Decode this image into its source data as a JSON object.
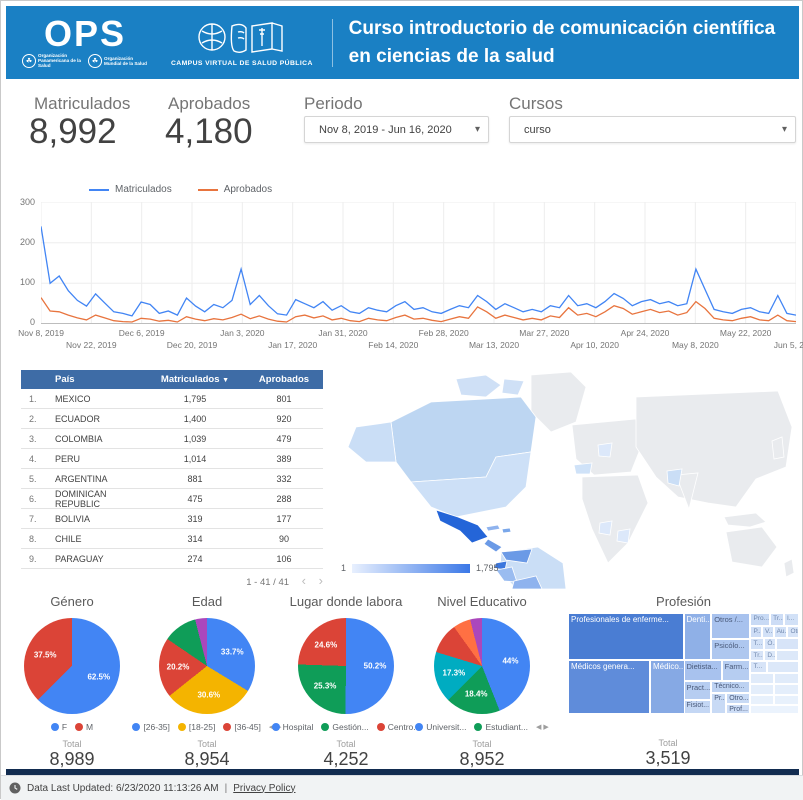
{
  "header": {
    "ops_text": "OPS",
    "org1": "Organización Panamericana de la Salud",
    "org2": "Organización Mundial de la Salud",
    "campus_label": "CAMPUS VIRTUAL DE SALUD PÚBLICA",
    "title": "Curso introductorio de comunicación científica en ciencias de la salud",
    "bg_color": "#1a80c4"
  },
  "scorecards": [
    {
      "label": "Matriculados",
      "value": "8,992"
    },
    {
      "label": "Aprobados",
      "value": "4,180"
    }
  ],
  "filters": {
    "periodo_label": "Periodo",
    "periodo_value": "Nov 8, 2019 - Jun 16, 2020",
    "cursos_label": "Cursos",
    "cursos_value": "curso"
  },
  "chart_data": {
    "timeseries": {
      "type": "line",
      "ylim": [
        0,
        300
      ],
      "yticks": [
        300,
        200,
        100,
        0
      ],
      "xticks_row1": [
        "Nov 8, 2019",
        "Dec 6, 2019",
        "Jan 3, 2020",
        "Jan 31, 2020",
        "Feb 28, 2020",
        "Mar 27, 2020",
        "Apr 24, 2020",
        "May 22, 2020"
      ],
      "xticks_row2": [
        "Nov 22, 2019",
        "Dec 20, 2019",
        "Jan 17, 2020",
        "Feb 14, 2020",
        "Mar 13, 2020",
        "Apr 10, 2020",
        "May 8, 2020",
        "Jun 5, 2020"
      ],
      "series": [
        {
          "name": "Matriculados",
          "color": "#4285f4",
          "values": [
            240,
            100,
            118,
            82,
            58,
            44,
            74,
            52,
            30,
            26,
            20,
            54,
            48,
            26,
            32,
            22,
            64,
            44,
            30,
            48,
            40,
            58,
            135,
            48,
            70,
            45,
            25,
            22,
            60,
            50,
            40,
            55,
            34,
            45,
            30,
            26,
            40,
            34,
            30,
            45,
            55,
            36,
            40,
            30,
            26,
            36,
            45,
            40,
            70,
            55,
            36,
            50,
            40,
            30,
            36,
            30,
            45,
            40,
            70,
            45,
            50,
            40,
            55,
            75,
            63,
            45,
            55,
            60,
            50,
            55,
            45,
            50,
            135,
            85,
            36,
            30,
            26,
            36,
            40,
            30,
            26,
            70,
            26,
            22
          ]
        },
        {
          "name": "Aprobados",
          "color": "#e8743e",
          "values": [
            65,
            32,
            30,
            22,
            15,
            10,
            22,
            15,
            8,
            6,
            5,
            14,
            12,
            7,
            9,
            5,
            18,
            12,
            8,
            13,
            10,
            16,
            24,
            13,
            20,
            12,
            7,
            5,
            18,
            22,
            15,
            20,
            10,
            14,
            8,
            6,
            14,
            10,
            8,
            16,
            22,
            12,
            14,
            9,
            6,
            12,
            18,
            14,
            42,
            30,
            14,
            22,
            16,
            10,
            14,
            10,
            20,
            16,
            40,
            22,
            26,
            18,
            30,
            45,
            38,
            24,
            30,
            36,
            28,
            32,
            22,
            28,
            55,
            38,
            14,
            10,
            8,
            14,
            18,
            10,
            8,
            22,
            8,
            6
          ]
        }
      ]
    },
    "country_table": {
      "type": "table",
      "columns": [
        "País",
        "Matriculados",
        "Aprobados"
      ],
      "sorted_column": "Matriculados",
      "sort_icon": "▼",
      "rows": [
        [
          "1.",
          "MEXICO",
          "1,795",
          "801"
        ],
        [
          "2.",
          "ECUADOR",
          "1,400",
          "920"
        ],
        [
          "3.",
          "COLOMBIA",
          "1,039",
          "479"
        ],
        [
          "4.",
          "PERU",
          "1,014",
          "389"
        ],
        [
          "5.",
          "ARGENTINA",
          "881",
          "332"
        ],
        [
          "6.",
          "DOMINICAN REPUBLIC",
          "475",
          "288"
        ],
        [
          "7.",
          "BOLIVIA",
          "319",
          "177"
        ],
        [
          "8.",
          "CHILE",
          "314",
          "90"
        ],
        [
          "9.",
          "PARAGUAY",
          "274",
          "106"
        ]
      ],
      "pagination": "1 - 41 / 41"
    },
    "map": {
      "type": "heatmap",
      "legend_min": "1",
      "legend_max": "1,795"
    },
    "pies": [
      {
        "title": "Género",
        "total_label": "Total",
        "total": "8,989",
        "legend_visible": 2,
        "legend_overflow": false,
        "slices": [
          {
            "name": "F",
            "color": "#4285f4",
            "pct": 62.5,
            "label": "62.5%"
          },
          {
            "name": "M",
            "color": "#db4437",
            "pct": 37.5,
            "label": "37.5%"
          }
        ]
      },
      {
        "title": "Edad",
        "total_label": "Total",
        "total": "8,954",
        "legend_visible": 3,
        "legend_overflow": true,
        "slices": [
          {
            "name": "[26-35]",
            "color": "#4285f4",
            "pct": 33.7,
            "label": "33.7%"
          },
          {
            "name": "[18-25]",
            "color": "#f4b400",
            "pct": 30.6,
            "label": "30.6%"
          },
          {
            "name": "[36-45]",
            "color": "#db4437",
            "pct": 20.2,
            "label": "20.2%"
          },
          {
            "name": "",
            "color": "#0f9d58",
            "pct": 11.5,
            "label": ""
          },
          {
            "name": "",
            "color": "#ab47bc",
            "pct": 4.0,
            "label": ""
          }
        ]
      },
      {
        "title": "Lugar donde labora",
        "total_label": "Total",
        "total": "4,252",
        "legend_visible": 3,
        "legend_overflow": false,
        "slices": [
          {
            "name": "Hospital",
            "color": "#4285f4",
            "pct": 50.2,
            "label": "50.2%"
          },
          {
            "name": "Gestión...",
            "color": "#0f9d58",
            "pct": 25.3,
            "label": "25.3%"
          },
          {
            "name": "Centro...",
            "color": "#db4437",
            "pct": 24.6,
            "label": "24.6%"
          }
        ]
      },
      {
        "title": "Nivel Educativo",
        "total_label": "Total",
        "total": "8,952",
        "legend_visible": 2,
        "legend_overflow": true,
        "slices": [
          {
            "name": "Universit...",
            "color": "#4285f4",
            "pct": 44.0,
            "label": "44%"
          },
          {
            "name": "Estudiant...",
            "color": "#0f9d58",
            "pct": 18.4,
            "label": "18.4%"
          },
          {
            "name": "",
            "color": "#00acc1",
            "pct": 17.3,
            "label": "17.3%"
          },
          {
            "name": "",
            "color": "#db4437",
            "pct": 10.4,
            "label": ""
          },
          {
            "name": "",
            "color": "#ff7043",
            "pct": 5.9,
            "label": ""
          },
          {
            "name": "",
            "color": "#ab47bc",
            "pct": 4.0,
            "label": ""
          }
        ]
      }
    ],
    "treemap": {
      "title": "Profesión",
      "total_label": "Total",
      "total": "3,519",
      "cells": [
        [
          "Profesionales de enferme...",
          0,
          0,
          50,
          47,
          "#4a7dd3",
          "#ffffff",
          8
        ],
        [
          "Médicos genera...",
          0,
          47,
          35.5,
          53,
          "#5f8cda",
          "#ffffff",
          8
        ],
        [
          "Médico...",
          35.5,
          47,
          16,
          53,
          "#86a9e4",
          "#ffffff",
          8
        ],
        [
          "Denti...",
          50,
          0,
          12,
          47,
          "#8fb0e7",
          "#ffffff",
          8
        ],
        [
          "Otros /...",
          62,
          0,
          17,
          26,
          "#a8c2ee",
          "#4a5a7a",
          7.5
        ],
        [
          "Psicólo...",
          62,
          26,
          17,
          21,
          "#aec7ef",
          "#4a5a7a",
          7.5
        ],
        [
          "Dietista...",
          50,
          47,
          16.5,
          20,
          "#a8c2ee",
          "#4a5a7a",
          7.5
        ],
        [
          "Farm...",
          66.5,
          47,
          12.5,
          20,
          "#b6cdf1",
          "#4a5a7a",
          7.5
        ],
        [
          "Pract...",
          50,
          67,
          12,
          19,
          "#b6cdf1",
          "#4a5a7a",
          7.5
        ],
        [
          "Técnico...",
          62,
          67,
          17,
          12,
          "#bdd2f2",
          "#4a5a7a",
          7
        ],
        [
          "Fisiot...",
          50,
          86,
          12,
          14,
          "#c4d7f4",
          "#4a5a7a",
          7
        ],
        [
          "Pr...",
          62,
          79,
          6.5,
          21,
          "#c8daf5",
          "#4a5a7a",
          7
        ],
        [
          "Otro...",
          68.5,
          79,
          10.5,
          11,
          "#c8daf5",
          "#4a5a7a",
          7
        ],
        [
          "Prof...",
          68.5,
          90,
          10.5,
          10,
          "#cdddf6",
          "#4a5a7a",
          7
        ],
        [
          "Pro...",
          79,
          0,
          8.5,
          13,
          "#c8daf5"
        ],
        [
          "Tr...",
          87.5,
          0,
          6,
          13,
          "#cdddf6"
        ],
        [
          "I...",
          93.5,
          0,
          6.5,
          13,
          "#d2e1f7"
        ],
        [
          "P...",
          79,
          13,
          5,
          12,
          "#cdddf6"
        ],
        [
          "V...",
          84,
          13,
          5,
          12,
          "#d2e1f7"
        ],
        [
          "Au...",
          89,
          13,
          6,
          12,
          "#d2e1f7"
        ],
        [
          "Otr...",
          95,
          13,
          5,
          12,
          "#d7e4f8"
        ],
        [
          "T...",
          79,
          25,
          6,
          12,
          "#d2e1f7"
        ],
        [
          "Ó...",
          85,
          25,
          5,
          12,
          "#d7e4f8"
        ],
        [
          "",
          90,
          25,
          10,
          12,
          "#d7e4f8"
        ],
        [
          "Tr...",
          79,
          37,
          6,
          11,
          "#d7e4f8"
        ],
        [
          "D...",
          85,
          37,
          5,
          11,
          "#dce8f9"
        ],
        [
          "",
          90,
          37,
          10,
          11,
          "#dce8f9"
        ],
        [
          "T...",
          79,
          48,
          7,
          11,
          "#d7e4f8"
        ],
        [
          "",
          86,
          48,
          14,
          11,
          "#dce8f9"
        ],
        [
          "",
          79,
          59,
          10,
          11,
          "#e0ebfa"
        ],
        [
          "",
          89,
          59,
          11,
          11,
          "#e0ebfa"
        ],
        [
          "",
          79,
          70,
          10,
          11,
          "#e4eefb"
        ],
        [
          "",
          89,
          70,
          11,
          11,
          "#e4eefb"
        ],
        [
          "",
          79,
          81,
          10,
          10,
          "#e8f1fc"
        ],
        [
          "",
          89,
          81,
          11,
          10,
          "#e8f1fc"
        ],
        [
          "",
          79,
          91,
          21,
          9,
          "#ebf3fd"
        ]
      ]
    }
  },
  "footer": {
    "updated": "Data Last Updated: 6/23/2020 11:13:26 AM",
    "separator": "|",
    "privacy": "Privacy Policy"
  }
}
